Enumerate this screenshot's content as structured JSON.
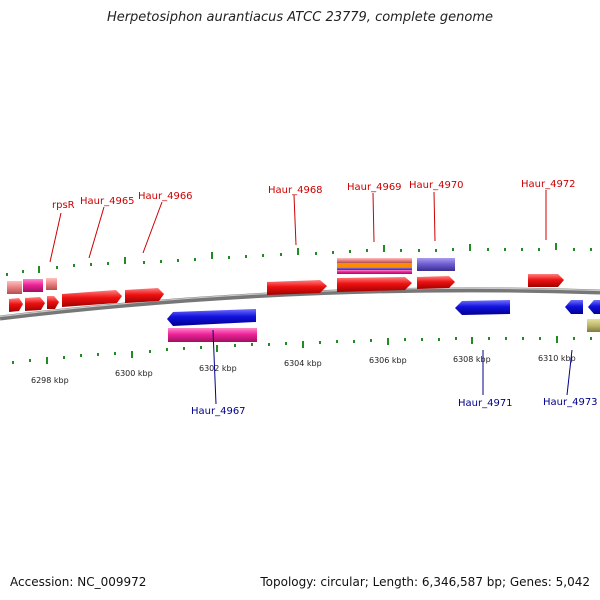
{
  "title": "Herpetosiphon aurantiacus ATCC 23779, complete genome",
  "accession": "Accession: NC_009972",
  "topology": "Topology: circular; Length: 6,346,587 bp; Genes: 5,042",
  "colors": {
    "forward_cds": "#ee1111",
    "reverse_cds": "#1111dd",
    "rna_pink": "#ee2299",
    "pseudo_salmon": "#e88080",
    "purple": "#6a5acd",
    "olive": "#bdb76b",
    "orange": "#ff8c00",
    "backbone": "#888888",
    "tick": "#228b22",
    "label_forward": "#cc0000",
    "label_reverse": "#00008b"
  },
  "ticks": [
    {
      "label": "6298 kbp"
    },
    {
      "label": "6300 kbp"
    },
    {
      "label": "6302 kbp"
    },
    {
      "label": "6304 kbp"
    },
    {
      "label": "6306 kbp"
    },
    {
      "label": "6308 kbp"
    },
    {
      "label": "6310 kbp"
    }
  ],
  "gene_labels_forward": [
    "rpsR",
    "Haur_4965",
    "Haur_4966",
    "Haur_4968",
    "Haur_4969",
    "Haur_4970",
    "Haur_4972"
  ],
  "gene_labels_reverse": [
    "Haur_4967",
    "Haur_4971",
    "Haur_4973"
  ]
}
